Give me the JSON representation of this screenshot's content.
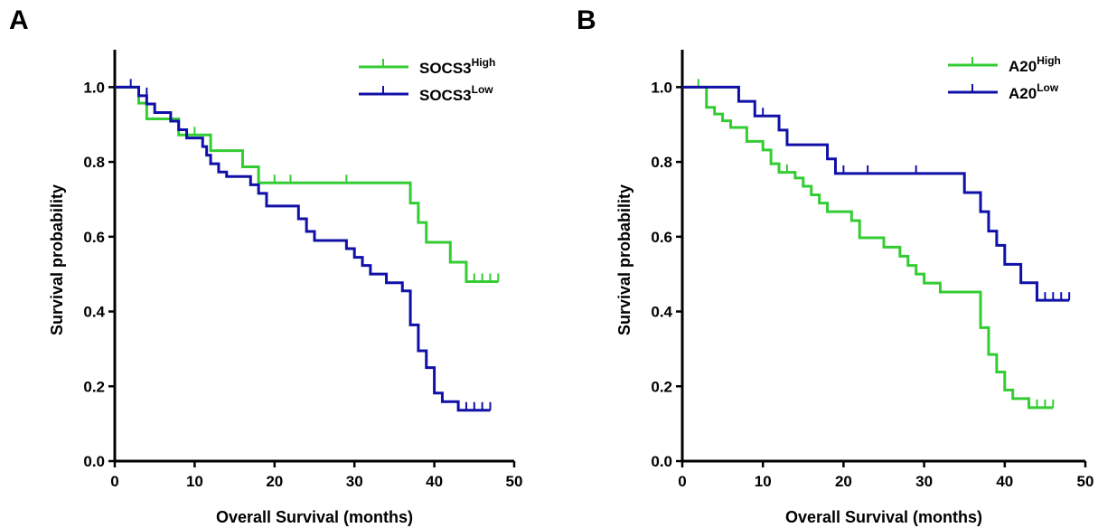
{
  "chart_data": [
    {
      "panel_label": "A",
      "type": "line",
      "subtype": "kaplan-meier",
      "xlabel": "Overall Survival (months)",
      "ylabel": "Survival probability",
      "xlim": [
        0,
        50
      ],
      "ylim": [
        0,
        1.1
      ],
      "xticks": [
        "0",
        "10",
        "20",
        "30",
        "40",
        "50"
      ],
      "yticks": [
        "0.0",
        "0.2",
        "0.4",
        "0.6",
        "0.8",
        "1.0"
      ],
      "xtick_values": [
        0,
        10,
        20,
        30,
        40,
        50
      ],
      "ytick_values": [
        0,
        0.2,
        0.4,
        0.6,
        0.8,
        1.0
      ],
      "grid": false,
      "legend_position": "top-right",
      "series": [
        {
          "name": "SOCS3",
          "sup": "High",
          "color": "#33cc33",
          "steps": [
            [
              0,
              1.0
            ],
            [
              3,
              0.957
            ],
            [
              4,
              0.915
            ],
            [
              8,
              0.872
            ],
            [
              12,
              0.83
            ],
            [
              16,
              0.787
            ],
            [
              18,
              0.744
            ],
            [
              37,
              0.69
            ],
            [
              38,
              0.638
            ],
            [
              39,
              0.585
            ],
            [
              42,
              0.532
            ],
            [
              44,
              0.48
            ],
            [
              48,
              0.48
            ]
          ],
          "censors": [
            [
              10,
              0.872
            ],
            [
              20,
              0.744
            ],
            [
              22,
              0.744
            ],
            [
              29,
              0.744
            ],
            [
              45,
              0.48
            ],
            [
              46,
              0.48
            ],
            [
              47,
              0.48
            ],
            [
              48,
              0.48
            ]
          ]
        },
        {
          "name": "SOCS3",
          "sup": "Low",
          "color": "#1010a8",
          "steps": [
            [
              0,
              1.0
            ],
            [
              3,
              0.977
            ],
            [
              4,
              0.955
            ],
            [
              5,
              0.932
            ],
            [
              7,
              0.909
            ],
            [
              8,
              0.886
            ],
            [
              9,
              0.864
            ],
            [
              11,
              0.841
            ],
            [
              11.5,
              0.818
            ],
            [
              12,
              0.795
            ],
            [
              13,
              0.773
            ],
            [
              14,
              0.761
            ],
            [
              17,
              0.739
            ],
            [
              18,
              0.716
            ],
            [
              19,
              0.682
            ],
            [
              23,
              0.648
            ],
            [
              24,
              0.614
            ],
            [
              25,
              0.59
            ],
            [
              29,
              0.568
            ],
            [
              30,
              0.545
            ],
            [
              31,
              0.523
            ],
            [
              32,
              0.5
            ],
            [
              34,
              0.477
            ],
            [
              36,
              0.455
            ],
            [
              37,
              0.364
            ],
            [
              38,
              0.295
            ],
            [
              39,
              0.25
            ],
            [
              40,
              0.182
            ],
            [
              41,
              0.159
            ],
            [
              43,
              0.136
            ],
            [
              47,
              0.136
            ]
          ],
          "censors": [
            [
              2,
              1.0
            ],
            [
              4,
              0.977
            ],
            [
              44,
              0.136
            ],
            [
              45,
              0.136
            ],
            [
              46,
              0.136
            ],
            [
              47,
              0.136
            ]
          ]
        }
      ]
    },
    {
      "panel_label": "B",
      "type": "line",
      "subtype": "kaplan-meier",
      "xlabel": "Overall Survival (months)",
      "ylabel": "Survival probability",
      "xlim": [
        0,
        50
      ],
      "ylim": [
        0,
        1.1
      ],
      "xticks": [
        "0",
        "10",
        "20",
        "30",
        "40",
        "50"
      ],
      "yticks": [
        "0.0",
        "0.2",
        "0.4",
        "0.6",
        "0.8",
        "1.0"
      ],
      "xtick_values": [
        0,
        10,
        20,
        30,
        40,
        50
      ],
      "ytick_values": [
        0,
        0.2,
        0.4,
        0.6,
        0.8,
        1.0
      ],
      "grid": false,
      "legend_position": "top-right",
      "series": [
        {
          "name": "A20",
          "sup": "High",
          "color": "#33cc33",
          "steps": [
            [
              0,
              1.0
            ],
            [
              3,
              0.946
            ],
            [
              4,
              0.928
            ],
            [
              5,
              0.91
            ],
            [
              6,
              0.892
            ],
            [
              8,
              0.855
            ],
            [
              10,
              0.832
            ],
            [
              11,
              0.795
            ],
            [
              12,
              0.772
            ],
            [
              14,
              0.757
            ],
            [
              15,
              0.735
            ],
            [
              16,
              0.712
            ],
            [
              17,
              0.69
            ],
            [
              18,
              0.667
            ],
            [
              21,
              0.643
            ],
            [
              22,
              0.597
            ],
            [
              25,
              0.572
            ],
            [
              27,
              0.548
            ],
            [
              28,
              0.523
            ],
            [
              29,
              0.5
            ],
            [
              30,
              0.476
            ],
            [
              32,
              0.452
            ],
            [
              37,
              0.357
            ],
            [
              38,
              0.285
            ],
            [
              39,
              0.238
            ],
            [
              40,
              0.19
            ],
            [
              41,
              0.167
            ],
            [
              43,
              0.143
            ],
            [
              46,
              0.143
            ]
          ],
          "censors": [
            [
              2,
              1.0
            ],
            [
              13,
              0.772
            ],
            [
              44,
              0.143
            ],
            [
              45,
              0.143
            ],
            [
              46,
              0.143
            ]
          ]
        },
        {
          "name": "A20",
          "sup": "Low",
          "color": "#1010a8",
          "steps": [
            [
              0,
              1.0
            ],
            [
              7,
              0.962
            ],
            [
              9,
              0.923
            ],
            [
              12,
              0.885
            ],
            [
              13,
              0.846
            ],
            [
              18,
              0.808
            ],
            [
              19,
              0.769
            ],
            [
              35,
              0.718
            ],
            [
              37,
              0.667
            ],
            [
              38,
              0.615
            ],
            [
              39,
              0.577
            ],
            [
              40,
              0.526
            ],
            [
              42,
              0.477
            ],
            [
              44,
              0.43
            ],
            [
              48,
              0.43
            ]
          ],
          "censors": [
            [
              10,
              0.923
            ],
            [
              20,
              0.769
            ],
            [
              23,
              0.769
            ],
            [
              29,
              0.769
            ],
            [
              45,
              0.43
            ],
            [
              46,
              0.43
            ],
            [
              47,
              0.43
            ],
            [
              48,
              0.43
            ]
          ]
        }
      ]
    }
  ]
}
